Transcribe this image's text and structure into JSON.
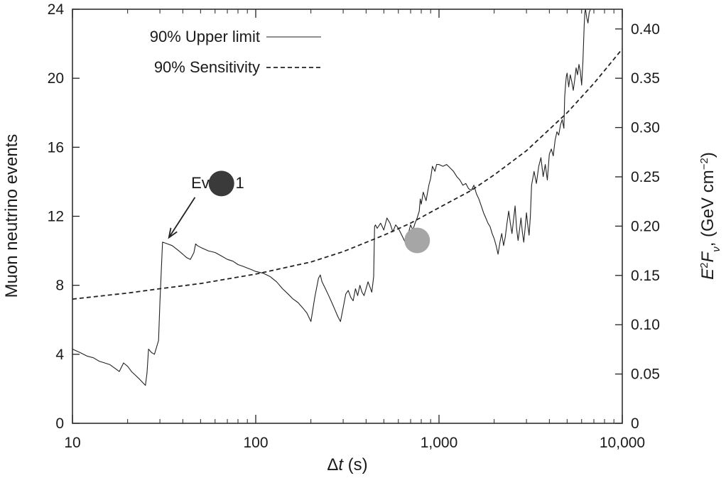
{
  "chart_data": {
    "type": "line",
    "x_scale": "log",
    "xlim": [
      10,
      10000
    ],
    "ylim": [
      0,
      24
    ],
    "y2lim": [
      0,
      0.42
    ],
    "xlabel": {
      "symbol": "Δ",
      "var": "t",
      "unit": " (s)"
    },
    "ylabel": "Muon neutrino events",
    "y2label": {
      "prefix": "E",
      "sup": "2",
      "mid": "F",
      "sub": "ν",
      "suffix": ", (GeV cm",
      "sup2": "−2",
      "end": ")"
    },
    "x_ticks": [
      10,
      100,
      1000,
      10000
    ],
    "x_tick_labels": [
      "10",
      "100",
      "1,000",
      "10,000"
    ],
    "y_ticks": [
      0,
      4,
      8,
      12,
      16,
      20,
      24
    ],
    "y_tick_labels": [
      "0",
      "4",
      "8",
      "12",
      "16",
      "20",
      "24"
    ],
    "y2_ticks": [
      0,
      0.05,
      0.1,
      0.15,
      0.2,
      0.25,
      0.3,
      0.35,
      0.4
    ],
    "y2_tick_labels": [
      "0",
      "0.05",
      "0.10",
      "0.15",
      "0.20",
      "0.25",
      "0.30",
      "0.35",
      "0.40"
    ],
    "grid": false,
    "legend": {
      "placement": "top-left",
      "entries": [
        {
          "label": "90% Upper limit",
          "style": "solid"
        },
        {
          "label": "90% Sensitivity",
          "style": "dashed"
        }
      ]
    },
    "annotation": {
      "text": "Event 1",
      "x": 62,
      "y": 14,
      "arrow_to": {
        "x": 33,
        "y": 10.6
      }
    },
    "markers": [
      {
        "x": 65,
        "y": 13.9,
        "color": "#3a3a3a"
      },
      {
        "x": 760,
        "y": 10.6,
        "color": "#a6a6a6"
      }
    ],
    "series": [
      {
        "name": "90% Upper limit",
        "style": "solid",
        "x": [
          10,
          11,
          12,
          13,
          14,
          15,
          16,
          17,
          18,
          19,
          20,
          21,
          22,
          23,
          24,
          25,
          25.5,
          26,
          27,
          28,
          29.5,
          30,
          31,
          33,
          35,
          37,
          38,
          40,
          42,
          44,
          46,
          47,
          48,
          50,
          55,
          60,
          65,
          70,
          75,
          80,
          85,
          90,
          95,
          100,
          110,
          120,
          130,
          140,
          150,
          160,
          170,
          180,
          190,
          200,
          210,
          220,
          225,
          230,
          240,
          250,
          260,
          270,
          280,
          290,
          300,
          310,
          320,
          330,
          340,
          350,
          360,
          370,
          380,
          390,
          400,
          410,
          420,
          430,
          440,
          445,
          450,
          460,
          480,
          500,
          520,
          540,
          560,
          580,
          600,
          620,
          640,
          660,
          680,
          700,
          720,
          740,
          760,
          780,
          790,
          800,
          820,
          850,
          880,
          900,
          920,
          950,
          970,
          1000,
          1050,
          1100,
          1150,
          1200,
          1250,
          1300,
          1350,
          1400,
          1450,
          1500,
          1550,
          1600,
          1650,
          1700,
          1750,
          1800,
          1850,
          1900,
          1950,
          2000,
          2050,
          2100,
          2150,
          2200,
          2250,
          2300,
          2350,
          2400,
          2450,
          2500,
          2550,
          2600,
          2650,
          2700,
          2750,
          2800,
          2850,
          2900,
          2950,
          3000,
          3050,
          3100,
          3150,
          3200,
          3300,
          3400,
          3500,
          3600,
          3700,
          3800,
          3900,
          4000,
          4100,
          4200,
          4300,
          4400,
          4500,
          4600,
          4700,
          4800,
          4850,
          4900,
          4950,
          5000,
          5100,
          5200,
          5300,
          5400,
          5500,
          5600,
          5700,
          5800,
          5900,
          6000,
          6100,
          6200,
          6250,
          6300,
          6400,
          6500,
          6600,
          6700,
          6800
        ],
        "values": [
          4.3,
          4.1,
          3.9,
          3.8,
          3.6,
          3.5,
          3.4,
          3.2,
          3.0,
          3.5,
          3.3,
          3.0,
          2.8,
          2.6,
          2.4,
          2.2,
          2.9,
          4.3,
          4.1,
          4.0,
          4.8,
          7.0,
          10.5,
          10.4,
          10.3,
          10.1,
          10.0,
          9.8,
          9.6,
          9.5,
          9.9,
          10.4,
          10.3,
          10.2,
          10.0,
          9.9,
          9.7,
          9.5,
          9.4,
          9.2,
          9.1,
          9.0,
          8.9,
          8.8,
          8.7,
          8.5,
          8.2,
          7.8,
          7.5,
          7.2,
          7.0,
          6.7,
          6.4,
          5.9,
          7.3,
          8.4,
          8.6,
          8.2,
          7.8,
          7.4,
          7.0,
          6.6,
          6.2,
          5.9,
          6.7,
          7.5,
          7.7,
          7.3,
          7.1,
          7.8,
          7.4,
          8.0,
          7.6,
          7.4,
          7.8,
          8.2,
          7.9,
          7.6,
          8.5,
          11.4,
          11.5,
          11.3,
          11.6,
          11.2,
          11.9,
          11.6,
          11.1,
          11.5,
          11.3,
          11.0,
          10.7,
          10.4,
          11.0,
          11.5,
          11.2,
          11.6,
          11.9,
          12.3,
          13.0,
          12.7,
          13.4,
          12.9,
          13.8,
          14.2,
          14.9,
          14.6,
          15.0,
          15.0,
          14.9,
          15.0,
          14.8,
          14.6,
          14.3,
          14.1,
          13.8,
          13.9,
          13.6,
          13.5,
          13.8,
          13.3,
          13.0,
          12.6,
          12.2,
          11.9,
          11.6,
          11.4,
          11.0,
          10.7,
          10.3,
          9.8,
          10.5,
          11.0,
          10.3,
          10.8,
          11.6,
          12.3,
          11.6,
          11.0,
          11.8,
          12.6,
          11.3,
          10.6,
          11.2,
          11.9,
          11.1,
          10.5,
          11.3,
          12.2,
          11.5,
          10.9,
          12.0,
          13.8,
          14.6,
          13.9,
          14.9,
          15.4,
          14.3,
          15.0,
          14.1,
          15.6,
          15.9,
          15.5,
          16.4,
          16.9,
          16.7,
          17.3,
          17.6,
          17.1,
          18.9,
          19.6,
          20.1,
          20.3,
          19.5,
          20.2,
          19.8,
          19.3,
          19.9,
          20.6,
          20.2,
          20.8,
          20.4,
          19.6,
          21.0,
          23.1,
          23.8,
          24.0,
          23.5,
          23.2,
          23.8,
          24.0,
          24.0
        ]
      },
      {
        "name": "90% Sensitivity",
        "style": "dashed",
        "x": [
          10,
          20,
          30,
          50,
          100,
          200,
          300,
          500,
          700,
          1000,
          1500,
          2000,
          3000,
          5000,
          7000,
          10000
        ],
        "values": [
          7.2,
          7.55,
          7.8,
          8.1,
          8.65,
          9.35,
          9.95,
          10.9,
          11.6,
          12.5,
          13.5,
          14.4,
          15.8,
          18.0,
          19.7,
          21.7
        ]
      }
    ]
  }
}
